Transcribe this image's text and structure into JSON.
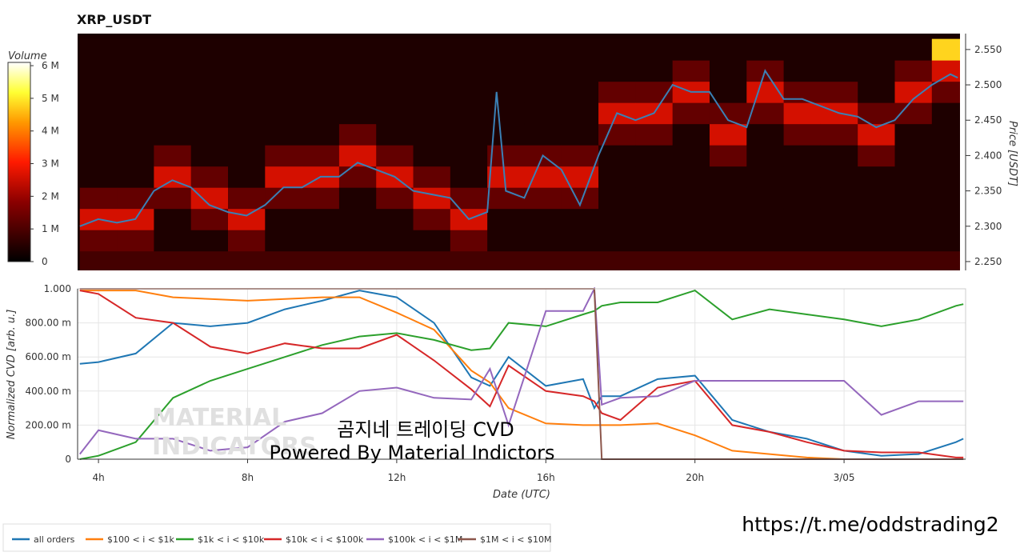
{
  "chart_data": [
    {
      "type": "heatmap",
      "title": "XRP_USDT",
      "colorbar_label": "Volume",
      "y_label": "Price [USDT]",
      "xlim": [
        3.44,
        27.26
      ],
      "ylim": [
        2.2375,
        2.5725
      ],
      "yticks": [
        {
          "value": 2.25,
          "label": "2.250"
        },
        {
          "value": 2.3,
          "label": "2.300"
        },
        {
          "value": 2.35,
          "label": "2.350"
        },
        {
          "value": 2.4,
          "label": "2.400"
        },
        {
          "value": 2.45,
          "label": "2.450"
        },
        {
          "value": 2.5,
          "label": "2.500"
        },
        {
          "value": 2.55,
          "label": "2.550"
        }
      ],
      "zlim": [
        0,
        6.1
      ],
      "zticks": [
        0,
        {
          "value": 1,
          "label": "1 M"
        },
        {
          "value": 2,
          "label": "2 M"
        },
        {
          "value": 3,
          "label": "3 M"
        },
        {
          "value": 4,
          "label": "4 M"
        },
        {
          "value": 5,
          "label": "5 M"
        },
        {
          "value": 6,
          "label": "6 M"
        }
      ],
      "cell_x": [
        4,
        5,
        6,
        7,
        8,
        9,
        10,
        11,
        12,
        13,
        14,
        15,
        16,
        17,
        18,
        19,
        20,
        21,
        22,
        23,
        24,
        25,
        26,
        27
      ],
      "cell_y": [
        2.25,
        2.28,
        2.31,
        2.34,
        2.37,
        2.4,
        2.43,
        2.46,
        2.49,
        2.52,
        2.55
      ],
      "z": [
        [
          0.9,
          1.3,
          2.6,
          1.3,
          0.4,
          0.4,
          0.4,
          0.4,
          0.4,
          0.4,
          0.4
        ],
        [
          0.9,
          1.3,
          2.6,
          1.3,
          0.4,
          0.4,
          0.4,
          0.4,
          0.4,
          0.4,
          0.4
        ],
        [
          0.9,
          0.4,
          0.4,
          1.3,
          2.6,
          1.3,
          0.4,
          0.4,
          0.4,
          0.4,
          0.4
        ],
        [
          0.9,
          0.4,
          1.3,
          2.6,
          1.3,
          0.4,
          0.4,
          0.4,
          0.4,
          0.4,
          0.4
        ],
        [
          0.9,
          1.3,
          2.6,
          1.3,
          0.4,
          0.4,
          0.4,
          0.4,
          0.4,
          0.4,
          0.4
        ],
        [
          0.9,
          0.4,
          0.4,
          1.3,
          2.6,
          1.3,
          0.4,
          0.4,
          0.4,
          0.4,
          0.4
        ],
        [
          0.9,
          0.4,
          0.4,
          1.3,
          2.6,
          1.3,
          0.4,
          0.4,
          0.4,
          0.4,
          0.4
        ],
        [
          0.9,
          0.4,
          0.4,
          0.4,
          1.3,
          2.6,
          1.3,
          0.4,
          0.4,
          0.4,
          0.4
        ],
        [
          0.9,
          0.4,
          0.4,
          1.3,
          2.6,
          1.3,
          0.4,
          0.4,
          0.4,
          0.4,
          0.4
        ],
        [
          0.9,
          0.4,
          1.3,
          2.6,
          1.3,
          0.4,
          0.4,
          0.4,
          0.4,
          0.4,
          0.4
        ],
        [
          0.9,
          1.3,
          2.6,
          1.3,
          0.4,
          0.4,
          0.4,
          0.4,
          0.4,
          0.4,
          0.4
        ],
        [
          0.9,
          0.4,
          0.4,
          1.3,
          2.6,
          1.3,
          0.4,
          0.4,
          0.4,
          0.4,
          0.4
        ],
        [
          0.9,
          0.4,
          0.4,
          1.3,
          2.6,
          1.3,
          0.4,
          0.4,
          0.4,
          0.4,
          0.4
        ],
        [
          0.9,
          0.4,
          0.4,
          1.3,
          2.6,
          1.3,
          0.4,
          0.4,
          0.4,
          0.4,
          0.4
        ],
        [
          0.9,
          0.4,
          0.4,
          0.4,
          0.4,
          0.4,
          1.3,
          2.6,
          1.3,
          0.4,
          0.4
        ],
        [
          0.9,
          0.4,
          0.4,
          0.4,
          0.4,
          0.4,
          1.3,
          2.6,
          1.3,
          0.4,
          0.4
        ],
        [
          0.9,
          0.4,
          0.4,
          0.4,
          0.4,
          0.4,
          0.4,
          1.3,
          2.6,
          1.3,
          0.4
        ],
        [
          0.9,
          0.4,
          0.4,
          0.4,
          0.4,
          1.3,
          2.6,
          1.3,
          0.4,
          0.4,
          0.4
        ],
        [
          0.9,
          0.4,
          0.4,
          0.4,
          0.4,
          0.4,
          0.4,
          1.3,
          2.6,
          1.3,
          0.4
        ],
        [
          0.9,
          0.4,
          0.4,
          0.4,
          0.4,
          0.4,
          1.3,
          2.6,
          1.3,
          0.4,
          0.4
        ],
        [
          0.9,
          0.4,
          0.4,
          0.4,
          0.4,
          0.4,
          1.3,
          2.6,
          1.3,
          0.4,
          0.4
        ],
        [
          0.9,
          0.4,
          0.4,
          0.4,
          0.4,
          1.3,
          2.6,
          1.3,
          0.4,
          0.4,
          0.4
        ],
        [
          0.9,
          0.4,
          0.4,
          0.4,
          0.4,
          0.4,
          0.4,
          1.3,
          2.6,
          1.3,
          0.4
        ],
        [
          0.9,
          0.4,
          0.4,
          0.4,
          0.4,
          0.4,
          0.4,
          0.4,
          1.3,
          2.6,
          4.8
        ]
      ],
      "line": {
        "color": "#3b80b5",
        "x": [
          3.5,
          4,
          4.5,
          5,
          5.5,
          6,
          6.5,
          7,
          7.5,
          8,
          8.5,
          9,
          9.5,
          10,
          10.5,
          11,
          11.5,
          12,
          12.5,
          13,
          13.5,
          14,
          14.5,
          14.75,
          15,
          15.5,
          16,
          16.5,
          17,
          17.5,
          18,
          18.5,
          19,
          19.5,
          20,
          20.5,
          21,
          21.5,
          22,
          22.5,
          23,
          23.5,
          24,
          24.5,
          25,
          25.5,
          26,
          26.5,
          27,
          27.2
        ],
        "values": [
          2.3,
          2.31,
          2.305,
          2.31,
          2.35,
          2.365,
          2.355,
          2.33,
          2.32,
          2.315,
          2.33,
          2.355,
          2.355,
          2.37,
          2.37,
          2.39,
          2.38,
          2.37,
          2.35,
          2.345,
          2.34,
          2.31,
          2.32,
          2.49,
          2.35,
          2.34,
          2.4,
          2.38,
          2.33,
          2.4,
          2.46,
          2.45,
          2.46,
          2.5,
          2.49,
          2.49,
          2.45,
          2.44,
          2.52,
          2.48,
          2.48,
          2.47,
          2.46,
          2.455,
          2.44,
          2.45,
          2.48,
          2.5,
          2.515,
          2.51
        ]
      }
    },
    {
      "type": "line",
      "x_label": "Date (UTC)",
      "y_label": "Normalized CVD [arb. u.]",
      "xlim": [
        3.44,
        27.26
      ],
      "xticks": [
        {
          "value": 4,
          "label": "4h"
        },
        {
          "value": 8,
          "label": "8h"
        },
        {
          "value": 12,
          "label": "12h"
        },
        {
          "value": 16,
          "label": "16h"
        },
        {
          "value": 20,
          "label": "20h"
        },
        {
          "value": 24,
          "label": "3/05"
        }
      ],
      "ylim": [
        0,
        1
      ],
      "yticks": [
        0,
        {
          "value": 0.2,
          "label": "200.00 m"
        },
        {
          "value": 0.4,
          "label": "400.00 m"
        },
        {
          "value": 0.6,
          "label": "600.00 m"
        },
        {
          "value": 0.8,
          "label": "800.00 m"
        },
        {
          "value": 1,
          "label": "1.000"
        }
      ],
      "grid": true,
      "x": [
        3.5,
        4,
        5,
        6,
        7,
        8,
        9,
        10,
        11,
        12,
        13,
        14,
        14.5,
        15,
        16,
        17,
        17.3,
        17.5,
        18,
        19,
        20,
        21,
        22,
        23,
        24,
        25,
        26,
        27,
        27.2
      ],
      "series": [
        {
          "name": "all orders",
          "color": "#1f77b4",
          "values": [
            0.56,
            0.57,
            0.62,
            0.8,
            0.78,
            0.8,
            0.88,
            0.93,
            0.99,
            0.95,
            0.8,
            0.48,
            0.43,
            0.6,
            0.43,
            0.47,
            0.3,
            0.37,
            0.37,
            0.47,
            0.49,
            0.23,
            0.16,
            0.12,
            0.05,
            0.02,
            0.03,
            0.1,
            0.12
          ]
        },
        {
          "name": "$100 < i < $1k",
          "color": "#ff7f0e",
          "values": [
            0.99,
            0.99,
            0.99,
            0.95,
            0.94,
            0.93,
            0.94,
            0.95,
            0.95,
            0.86,
            0.76,
            0.52,
            0.45,
            0.3,
            0.21,
            0.2,
            0.2,
            0.2,
            0.2,
            0.21,
            0.14,
            0.05,
            0.03,
            0.01,
            0,
            0,
            0,
            0,
            0
          ]
        },
        {
          "name": "$1k < i < $10k",
          "color": "#2ca02c",
          "values": [
            0,
            0.02,
            0.1,
            0.36,
            0.46,
            0.53,
            0.6,
            0.67,
            0.72,
            0.74,
            0.7,
            0.64,
            0.65,
            0.8,
            0.78,
            0.85,
            0.87,
            0.9,
            0.92,
            0.92,
            0.99,
            0.82,
            0.88,
            0.85,
            0.82,
            0.78,
            0.82,
            0.9,
            0.91
          ]
        },
        {
          "name": "$10k < i < $100k",
          "color": "#d62728",
          "values": [
            0.99,
            0.97,
            0.83,
            0.8,
            0.66,
            0.62,
            0.68,
            0.65,
            0.65,
            0.73,
            0.58,
            0.41,
            0.31,
            0.55,
            0.4,
            0.37,
            0.34,
            0.27,
            0.23,
            0.42,
            0.46,
            0.2,
            0.16,
            0.1,
            0.05,
            0.04,
            0.04,
            0.01,
            0.01
          ]
        },
        {
          "name": "$100k < i < $1M",
          "color": "#9467bd",
          "values": [
            0.03,
            0.17,
            0.12,
            0.12,
            0.05,
            0.07,
            0.22,
            0.27,
            0.4,
            0.42,
            0.36,
            0.35,
            0.53,
            0.2,
            0.87,
            0.87,
            1,
            0.32,
            0.36,
            0.37,
            0.46,
            0.46,
            0.46,
            0.46,
            0.46,
            0.26,
            0.34,
            0.34,
            0.34
          ]
        },
        {
          "name": "$1M < i < $10M",
          "color": "#8c564b",
          "values": [
            1,
            1,
            1,
            1,
            1,
            1,
            1,
            1,
            1,
            1,
            1,
            1,
            1,
            1,
            1,
            1,
            1,
            0,
            0,
            0,
            0,
            0,
            0,
            0,
            0,
            0,
            0,
            0,
            0
          ]
        }
      ]
    }
  ],
  "watermark": [
    "MATERIAL",
    "INDICATORS"
  ],
  "overlay_text": [
    "곰지네 트레이딩 CVD",
    "Powered By Material Indictors"
  ],
  "link": "https://t.me/oddstrading2"
}
